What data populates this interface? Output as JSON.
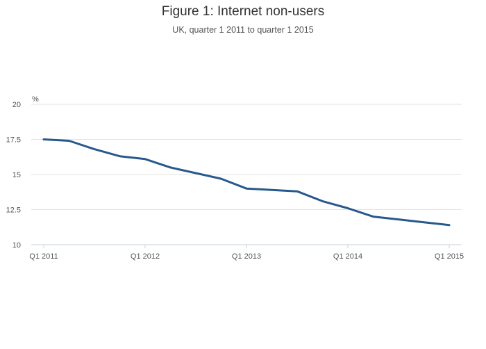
{
  "chart_data": {
    "type": "line",
    "title": "Figure 1: Internet non-users",
    "subtitle": "UK, quarter 1 2011 to quarter 1 2015",
    "ylabel": "%",
    "xlabel": "",
    "ylim": [
      10,
      20
    ],
    "yticks": [
      "10",
      "12.5",
      "15",
      "17.5",
      "20"
    ],
    "ytick_values": [
      10,
      12.5,
      15,
      17.5,
      20
    ],
    "x": [
      "Q1 2011",
      "Q2 2011",
      "Q3 2011",
      "Q4 2011",
      "Q1 2012",
      "Q2 2012",
      "Q3 2012",
      "Q4 2012",
      "Q1 2013",
      "Q2 2013",
      "Q3 2013",
      "Q4 2013",
      "Q1 2014",
      "Q2 2014",
      "Q3 2014",
      "Q4 2014",
      "Q1 2015"
    ],
    "xticks": [
      "Q1 2011",
      "Q1 2012",
      "Q1 2013",
      "Q1 2014",
      "Q1 2015"
    ],
    "xtick_indices": [
      0,
      4,
      8,
      12,
      16
    ],
    "series": [
      {
        "values": [
          17.5,
          17.4,
          16.8,
          16.3,
          16.1,
          15.5,
          15.1,
          14.7,
          14.0,
          13.9,
          13.8,
          13.1,
          12.6,
          12.0,
          11.8,
          11.6,
          11.4
        ]
      }
    ],
    "grid": true,
    "legend": "none",
    "colors": {
      "line": "#27598e",
      "grid": "#e3e3e3",
      "axis": "#c8d3e0"
    }
  }
}
